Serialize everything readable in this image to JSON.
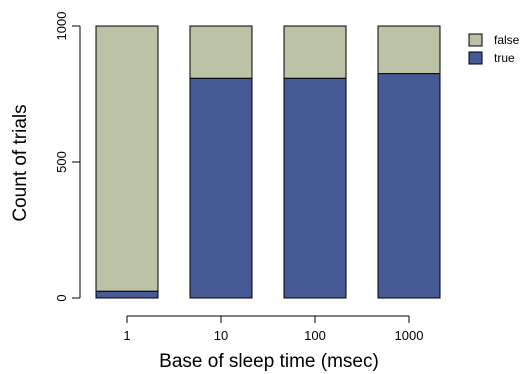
{
  "chart_data": {
    "type": "bar",
    "stacked": true,
    "categories": [
      "1",
      "10",
      "100",
      "1000"
    ],
    "series": [
      {
        "name": "true",
        "values": [
          25,
          808,
          808,
          825
        ],
        "color": "#465a96"
      },
      {
        "name": "false",
        "values": [
          975,
          192,
          192,
          175
        ],
        "color": "#bbc2a5"
      }
    ],
    "xlabel": "Base of sleep time (msec)",
    "ylabel": "Count of trials",
    "ylim": [
      0,
      1000
    ],
    "yticks": [
      0,
      500,
      1000
    ],
    "grid": false,
    "legend": {
      "placement": "top-right",
      "entries": [
        "false",
        "true"
      ]
    }
  }
}
